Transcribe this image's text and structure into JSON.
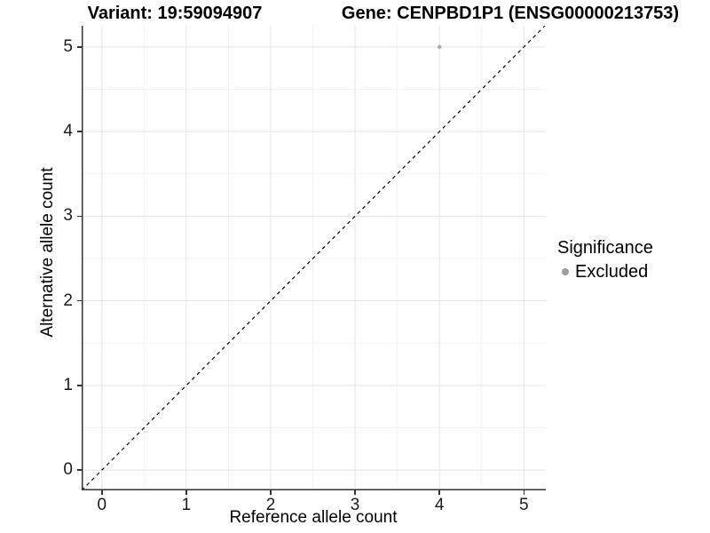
{
  "header": {
    "variant_title": "Variant: 19:59094907",
    "gene_title": "Gene: CENPBD1P1 (ENSG00000213753)"
  },
  "chart_data": {
    "type": "scatter",
    "title": "Variant: 19:59094907 — Gene: CENPBD1P1 (ENSG00000213753)",
    "xlabel": "Reference allele count",
    "ylabel": "Alternative allele count",
    "xlim": [
      -0.24,
      5.26
    ],
    "ylim": [
      -0.24,
      5.25
    ],
    "xticks": [
      0,
      1,
      2,
      3,
      4,
      5
    ],
    "yticks": [
      0,
      1,
      2,
      3,
      4,
      5
    ],
    "grid": "major gridlines at integers, minor gridlines at half-integers, on white panel",
    "identity_line": {
      "style": "dashed",
      "from": -0.24,
      "to": 5.25,
      "color": "#000000"
    },
    "series": [
      {
        "name": "Excluded",
        "color": "#ababab",
        "points": [
          {
            "x": 4,
            "y": 5
          }
        ]
      }
    ],
    "legend": {
      "title": "Significance",
      "position": "right",
      "items": [
        {
          "label": "Excluded",
          "color": "#9e9e9e"
        }
      ]
    },
    "colors": {
      "grid_major": "#e4e4e4",
      "grid_minor": "#f2f2f2",
      "axis_line": "#333333",
      "tick_label": "#1a1a1a",
      "background": "#ffffff"
    }
  }
}
